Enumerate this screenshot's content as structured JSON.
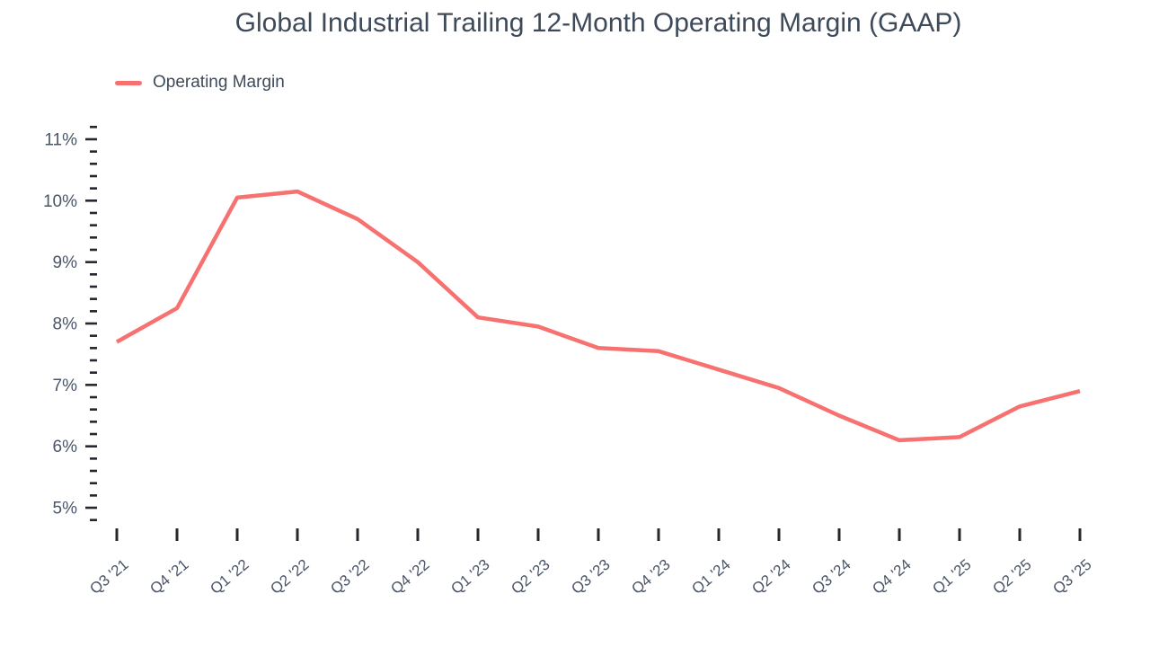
{
  "header": {
    "title": "Global Industrial Trailing 12-Month Operating Margin (GAAP)"
  },
  "legend": {
    "label": "Operating Margin",
    "swatch_color": "#F87171"
  },
  "colors": {
    "line": "#F87171",
    "title_text": "#3E4A59",
    "axis_label_text": "#4A5568",
    "tick_mark": "#25282E",
    "background": "#FFFFFF"
  },
  "chart_data": {
    "type": "line",
    "title": "Global Industrial Trailing 12-Month Operating Margin (GAAP)",
    "xlabel": "",
    "ylabel": "",
    "grid": false,
    "legend_position": "top-left",
    "categories": [
      "Q3 '21",
      "Q4 '21",
      "Q1 '22",
      "Q2 '22",
      "Q3 '22",
      "Q4 '22",
      "Q1 '23",
      "Q2 '23",
      "Q3 '23",
      "Q4 '23",
      "Q1 '24",
      "Q2 '24",
      "Q3 '24",
      "Q4 '24",
      "Q1 '25",
      "Q2 '25",
      "Q3 '25"
    ],
    "series": [
      {
        "name": "Operating Margin",
        "color": "#F87171",
        "values": [
          7.7,
          8.25,
          10.05,
          10.15,
          9.7,
          9.0,
          8.1,
          7.95,
          7.6,
          7.55,
          7.25,
          6.95,
          6.5,
          6.1,
          6.15,
          6.65,
          6.9
        ]
      }
    ],
    "y_axis": {
      "min": 4.8,
      "max": 11.2,
      "major_step": 1.0,
      "minor_step": 0.2,
      "unit": "%",
      "major_labels": [
        "5%",
        "6%",
        "7%",
        "8%",
        "9%",
        "10%",
        "11%"
      ]
    }
  }
}
